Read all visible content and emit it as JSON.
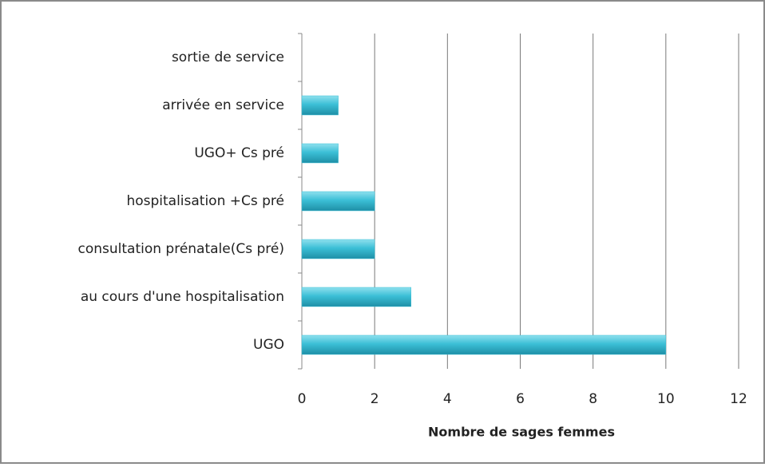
{
  "chart_data": {
    "type": "barh",
    "xlabel": "Nombre de sages femmes",
    "categories": [
      "sortie de service",
      "arrivée en service",
      "UGO+ Cs pré",
      "hospitalisation +Cs pré",
      "consultation prénatale(Cs pré)",
      "au cours d'une hospitalisation",
      "UGO"
    ],
    "values": [
      0,
      1,
      1,
      2,
      2,
      3,
      10
    ],
    "color": "#3bbfd6",
    "xlim": [
      0,
      12
    ],
    "xticks": [
      0,
      2,
      4,
      6,
      8,
      10,
      12
    ],
    "grid": true
  }
}
